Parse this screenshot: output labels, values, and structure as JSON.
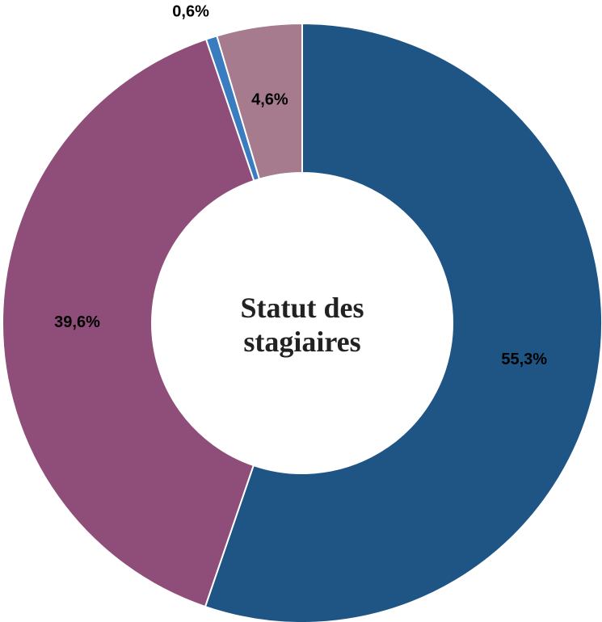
{
  "chart_data": {
    "type": "donut",
    "title": "Statut des stagiaires",
    "categories": [
      null,
      null,
      null,
      null
    ],
    "values": [
      55.3,
      39.6,
      0.6,
      4.6
    ],
    "value_labels": [
      "55,3%",
      "39,6%",
      "0,6%",
      "4,6%"
    ],
    "colors": [
      "#1f5585",
      "#8f4e7a",
      "#3a7cc0",
      "#a67b8e"
    ]
  }
}
